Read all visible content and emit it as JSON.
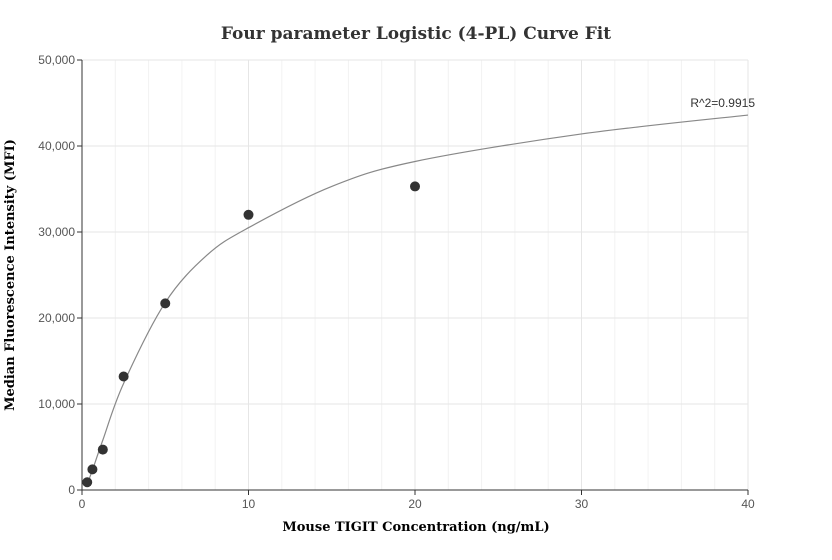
{
  "chart_data": {
    "type": "scatter",
    "title": "Four parameter Logistic (4-PL) Curve Fit",
    "xlabel": "Mouse TIGIT Concentration (ng/mL)",
    "ylabel": "Median Fluorescence Intensity (MFI)",
    "xlim": [
      0,
      40
    ],
    "ylim": [
      0,
      50000
    ],
    "x_ticks": [
      0,
      10,
      20,
      30,
      40
    ],
    "y_ticks": [
      0,
      10000,
      20000,
      30000,
      40000,
      50000
    ],
    "x_tick_labels": [
      "0",
      "10",
      "20",
      "30",
      "40"
    ],
    "y_tick_labels": [
      "0",
      "10,000",
      "20,000",
      "30,000",
      "40,000",
      "50,000"
    ],
    "grid": true,
    "points": {
      "x": [
        0.3125,
        0.625,
        1.25,
        2.5,
        5,
        10,
        20
      ],
      "y": [
        900,
        2400,
        4700,
        13200,
        21700,
        32000,
        35300
      ]
    },
    "fit_curve": {
      "model": "4PL",
      "x": [
        0.3125,
        0.625,
        1.25,
        2.5,
        5,
        7.5,
        10,
        15,
        20,
        30,
        40
      ],
      "y": [
        700,
        2300,
        5800,
        12400,
        21800,
        27300,
        30500,
        35300,
        38200,
        41400,
        43600
      ]
    },
    "annotations": [
      {
        "text": "R^2=0.9915"
      }
    ],
    "colors": {
      "points": "#333333",
      "curve": "#888888",
      "grid": "#e6e6e6",
      "axis": "#333333"
    }
  }
}
